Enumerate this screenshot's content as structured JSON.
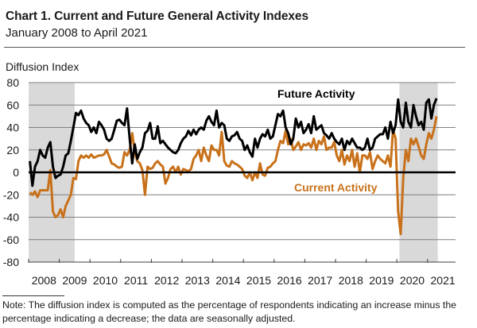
{
  "chart_data": {
    "type": "line",
    "title": "Chart 1. Current and Future General Activity Indexes",
    "subtitle": "January 2008 to April 2021",
    "ylabel": "Diffusion Index",
    "xlabel": "",
    "ylim": [
      -80,
      80
    ],
    "yticks": [
      80,
      60,
      40,
      20,
      0,
      -20,
      -40,
      -60,
      -80
    ],
    "ytick_labels": [
      "80",
      "60",
      "40",
      "20",
      "0",
      "-20",
      "-40",
      "-60",
      "-80"
    ],
    "xtick_labels": [
      "2008",
      "2009",
      "2010",
      "2011",
      "2012",
      "2013",
      "2014",
      "2015",
      "2016",
      "2017",
      "2018",
      "2019",
      "2020",
      "2021"
    ],
    "x_start": "2008-01",
    "x_end": "2021-04",
    "frequency": "monthly",
    "grid": true,
    "zero_line": true,
    "recession_shading": [
      {
        "start": "2008-01",
        "end": "2009-06"
      },
      {
        "start": "2020-02",
        "end": "2021-04"
      }
    ],
    "shading_color": "#d9d9d9",
    "annotations": [
      {
        "text": "Future Activity",
        "series": "Future Activity"
      },
      {
        "text": "Current Activity",
        "series": "Current Activity"
      }
    ],
    "series": [
      {
        "name": "Future Activity",
        "color": "#000000",
        "values": [
          10,
          -12,
          5,
          10,
          20,
          15,
          13,
          22,
          27,
          5,
          -5,
          -3,
          -2,
          5,
          15,
          17,
          28,
          40,
          53,
          51,
          55,
          48,
          44,
          42,
          36,
          40,
          35,
          45,
          42,
          38,
          30,
          28,
          30,
          38,
          46,
          47,
          44,
          42,
          57,
          30,
          8,
          25,
          12,
          18,
          22,
          35,
          37,
          44,
          30,
          30,
          41,
          26,
          28,
          25,
          22,
          20,
          18,
          17,
          20,
          26,
          30,
          32,
          37,
          33,
          38,
          34,
          38,
          40,
          38,
          46,
          50,
          45,
          42,
          55,
          40,
          44,
          42,
          30,
          28,
          32,
          33,
          36,
          30,
          28,
          20,
          24,
          18,
          14,
          30,
          22,
          30,
          34,
          32,
          38,
          30,
          32,
          42,
          52,
          50,
          55,
          40,
          35,
          25,
          30,
          48,
          40,
          45,
          35,
          38,
          43,
          35,
          50,
          38,
          40,
          42,
          35,
          33,
          30,
          35,
          30,
          27,
          25,
          30,
          20,
          28,
          25,
          30,
          26,
          22,
          22,
          20,
          22,
          30,
          20,
          22,
          30,
          32,
          34,
          34,
          40,
          30,
          45,
          35,
          42,
          65,
          45,
          40,
          62,
          45,
          40,
          60,
          50,
          42,
          45,
          38,
          62,
          65,
          48,
          60,
          66
        ]
      },
      {
        "name": "Current Activity",
        "color": "#c8711a",
        "values": [
          -18,
          -20,
          -17,
          -22,
          -16,
          -16,
          -16,
          -16,
          2,
          -35,
          -40,
          -38,
          -33,
          -40,
          -30,
          -25,
          -20,
          -5,
          -6,
          10,
          15,
          13,
          15,
          13,
          16,
          13,
          14,
          15,
          15,
          16,
          20,
          14,
          8,
          7,
          5,
          4,
          5,
          18,
          15,
          20,
          35,
          18,
          10,
          8,
          2,
          -20,
          5,
          3,
          4,
          8,
          10,
          7,
          5,
          -10,
          -5,
          3,
          5,
          0,
          5,
          -2,
          3,
          2,
          1,
          3,
          12,
          15,
          20,
          10,
          22,
          15,
          10,
          24,
          20,
          20,
          15,
          36,
          10,
          6,
          5,
          10,
          8,
          7,
          5,
          3,
          -3,
          -5,
          0,
          -7,
          0,
          -5,
          8,
          -2,
          -3,
          4,
          5,
          8,
          10,
          20,
          28,
          26,
          37,
          25,
          30,
          20,
          23,
          27,
          20,
          25,
          24,
          26,
          22,
          30,
          20,
          28,
          25,
          32,
          20,
          22,
          22,
          27,
          15,
          10,
          20,
          7,
          15,
          10,
          20,
          5,
          17,
          0,
          15,
          15,
          12,
          18,
          3,
          10,
          15,
          12,
          10,
          8,
          15,
          5,
          38,
          30,
          -35,
          -55,
          -5,
          20,
          10,
          30,
          25,
          30,
          23,
          15,
          12,
          25,
          35,
          30,
          38,
          50
        ]
      }
    ]
  },
  "note": "Note: The diffusion index is computed as the percentage of respondents indicating an increase minus the percentage indicating a decrease; the data are seasonally adjusted."
}
